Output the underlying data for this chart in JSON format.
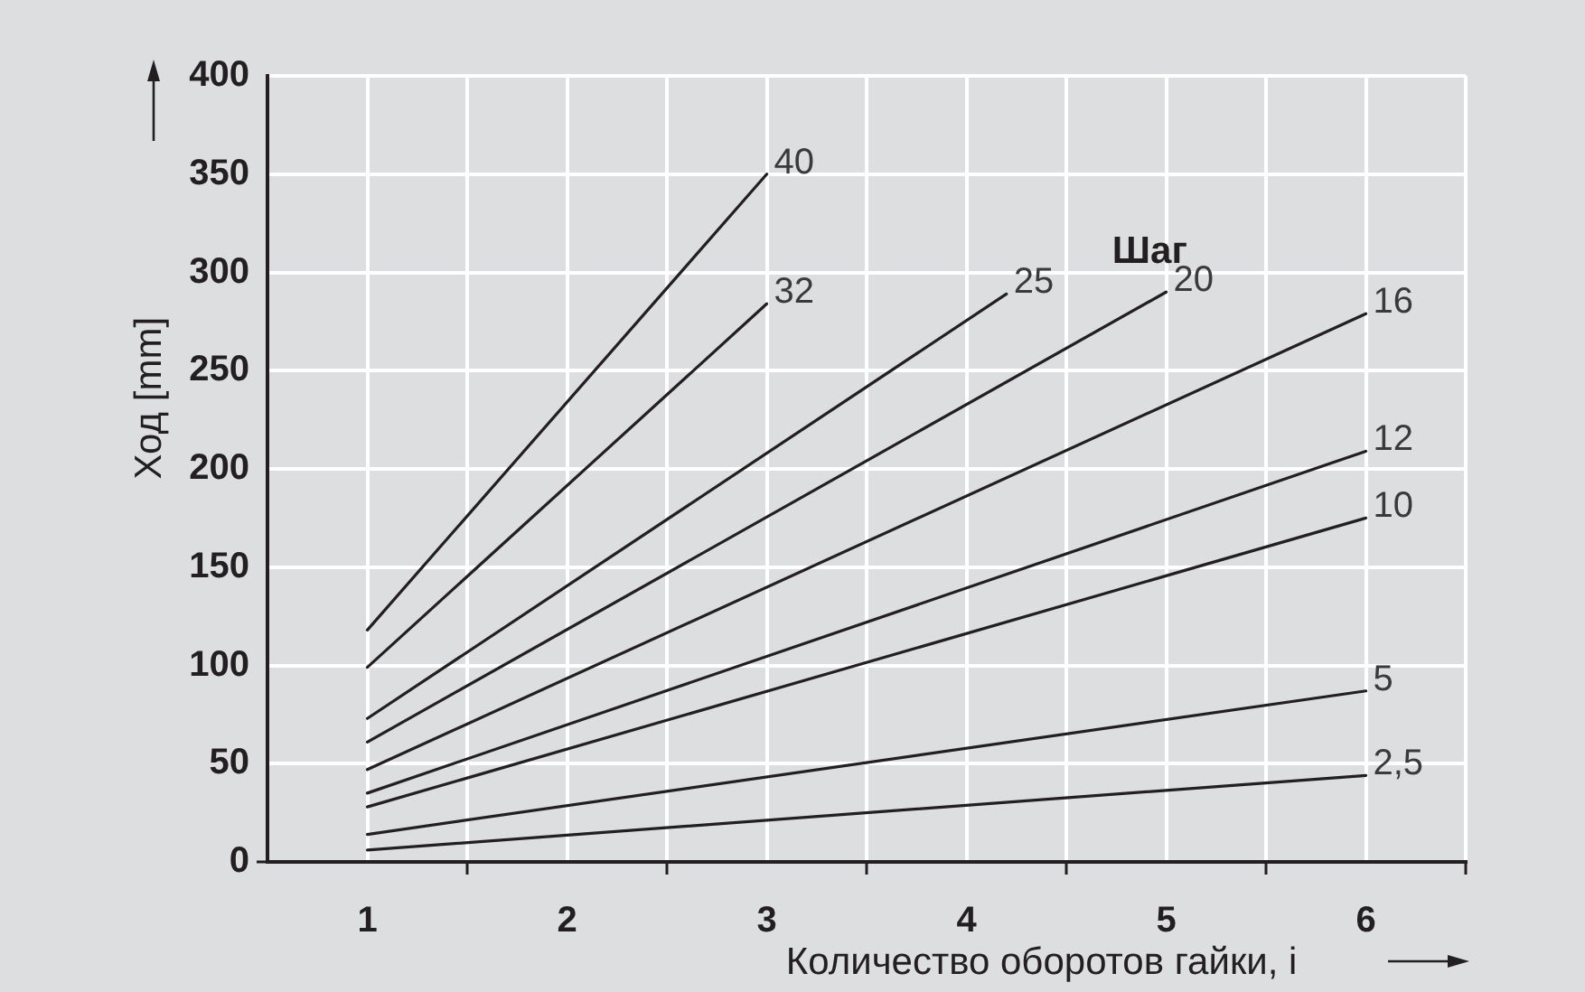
{
  "chart_data": {
    "type": "line",
    "xlabel": "Количество оборотов гайки, i",
    "ylabel": "Ход [mm]",
    "legend_title": "Шаг",
    "xlim": [
      0.5,
      6.5
    ],
    "xticks": [
      1,
      {
        "value": 1.5,
        "label": null
      },
      2,
      {
        "value": 2.5,
        "label": null
      },
      3,
      {
        "value": 3.5,
        "label": null
      },
      4,
      {
        "value": 4.5,
        "label": null
      },
      5,
      {
        "value": 5.5,
        "label": null
      },
      6,
      {
        "value": 6.5,
        "label": null
      }
    ],
    "ylim": [
      0,
      400
    ],
    "yticks": [
      0,
      50,
      100,
      150,
      200,
      250,
      300,
      350,
      400
    ],
    "grid": true,
    "marker": "none",
    "line_style": "solid",
    "series": [
      {
        "name": "40",
        "color": "#231f20",
        "x": [
          1,
          3
        ],
        "values": [
          118,
          350
        ]
      },
      {
        "name": "32",
        "color": "#231f20",
        "x": [
          1,
          3
        ],
        "values": [
          99,
          284
        ]
      },
      {
        "name": "25",
        "color": "#231f20",
        "x": [
          1,
          4.2
        ],
        "values": [
          73,
          289
        ]
      },
      {
        "name": "20",
        "color": "#231f20",
        "x": [
          1,
          5
        ],
        "values": [
          61,
          290
        ]
      },
      {
        "name": "16",
        "color": "#231f20",
        "x": [
          1,
          6
        ],
        "values": [
          47,
          279
        ]
      },
      {
        "name": "12",
        "color": "#231f20",
        "x": [
          1,
          6
        ],
        "values": [
          35,
          209
        ]
      },
      {
        "name": "10",
        "color": "#231f20",
        "x": [
          1,
          6
        ],
        "values": [
          28,
          175
        ]
      },
      {
        "name": "5",
        "color": "#231f20",
        "x": [
          1,
          6
        ],
        "values": [
          14,
          87
        ]
      },
      {
        "name": "2,5",
        "color": "#231f20",
        "x": [
          1,
          6
        ],
        "values": [
          6,
          44
        ]
      }
    ]
  }
}
